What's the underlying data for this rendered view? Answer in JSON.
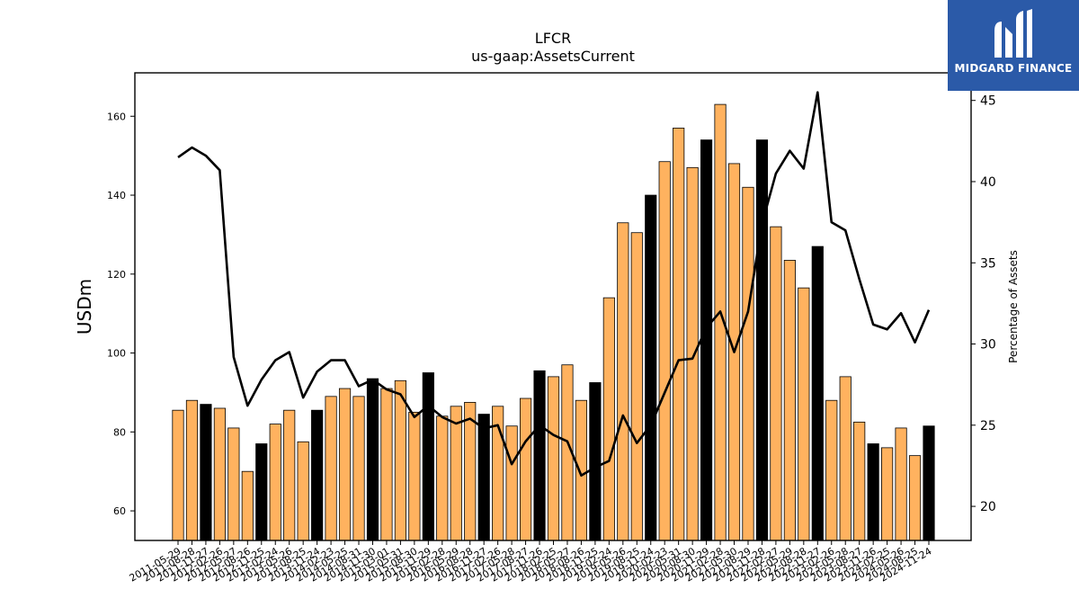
{
  "logo": {
    "text": "MIDGARD FINANCE",
    "bg": "#2b5aa8"
  },
  "chart_data": {
    "type": "bar+line",
    "title": "LFCR",
    "subtitle": "us-gaap:AssetsCurrent",
    "ylabel": "USDm",
    "y2label": "Percentage of Assets",
    "ylim": [
      52.5,
      171
    ],
    "y2lim": [
      17.9,
      46.7
    ],
    "yticks": [
      60,
      80,
      100,
      120,
      140,
      160
    ],
    "y2ticks": [
      20,
      25,
      30,
      35,
      40,
      45
    ],
    "grid": false,
    "colors": {
      "bar": "#ffb25f",
      "bar_q4": "#000000",
      "line": "#000000"
    },
    "categories": [
      "2011-05-29",
      "2011-08-28",
      "2011-11-27",
      "2012-02-26",
      "2012-05-27",
      "2012-08-26",
      "2012-11-25",
      "2013-02-24",
      "2013-05-26",
      "2013-08-25",
      "2013-11-24",
      "2014-02-23",
      "2014-05-25",
      "2014-08-31",
      "2014-11-30",
      "2015-03-01",
      "2015-05-31",
      "2015-08-30",
      "2015-11-29",
      "2016-02-28",
      "2016-05-29",
      "2016-08-28",
      "2016-11-27",
      "2017-02-26",
      "2017-05-28",
      "2017-08-27",
      "2017-11-26",
      "2018-02-25",
      "2018-05-27",
      "2018-08-26",
      "2018-11-25",
      "2019-02-24",
      "2019-05-26",
      "2019-08-25",
      "2019-11-24",
      "2020-02-23",
      "2020-05-31",
      "2020-08-30",
      "2020-11-29",
      "2021-02-28",
      "2021-05-30",
      "2021-08-29",
      "2021-11-28",
      "2022-02-27",
      "2022-05-29",
      "2022-08-28",
      "2022-11-27",
      "2023-02-26",
      "2023-05-28",
      "2023-08-27",
      "2023-11-26",
      "2024-02-25",
      "2024-05-26",
      "2024-08-25",
      "2024-11-24"
    ],
    "highlight_every": 4,
    "highlight_offset": 2,
    "series": [
      {
        "type": "bar",
        "values": [
          85.5,
          88.0,
          87.0,
          86.0,
          81.0,
          70.0,
          77.0,
          82.0,
          85.5,
          77.5,
          85.5,
          89.0,
          91.0,
          89.0,
          93.5,
          91.0,
          93.0,
          85.0,
          95.0,
          84.0,
          86.5,
          87.5,
          84.5,
          86.5,
          81.5,
          88.5,
          95.5,
          94.0,
          97.0,
          88.0,
          92.5,
          114.0,
          133.0,
          130.5,
          140.0,
          148.5,
          157.0,
          147.0,
          154.0,
          163.0,
          148.0,
          142.0,
          154.0,
          132.0,
          123.5,
          116.5,
          127.0,
          88.0,
          94.0,
          82.5,
          77.0,
          76.0,
          81.0,
          74.0,
          81.5
        ]
      },
      {
        "type": "line",
        "axis": "y2",
        "values": [
          41.5,
          42.1,
          41.6,
          40.7,
          29.2,
          26.2,
          27.8,
          29.0,
          29.5,
          26.7,
          28.3,
          29.0,
          29.0,
          27.4,
          27.8,
          27.2,
          26.9,
          25.5,
          26.2,
          25.5,
          25.1,
          25.4,
          24.8,
          25.0,
          22.6,
          24.0,
          25.0,
          24.4,
          24.0,
          21.9,
          22.4,
          22.8,
          25.6,
          23.9,
          25.0,
          27.0,
          29.0,
          29.1,
          31.0,
          32.0,
          29.5,
          32.0,
          37.4,
          40.5,
          41.9,
          40.8,
          45.5,
          37.5,
          37.0,
          34.0,
          31.2,
          30.9,
          31.9,
          30.1,
          32.1
        ]
      }
    ]
  }
}
